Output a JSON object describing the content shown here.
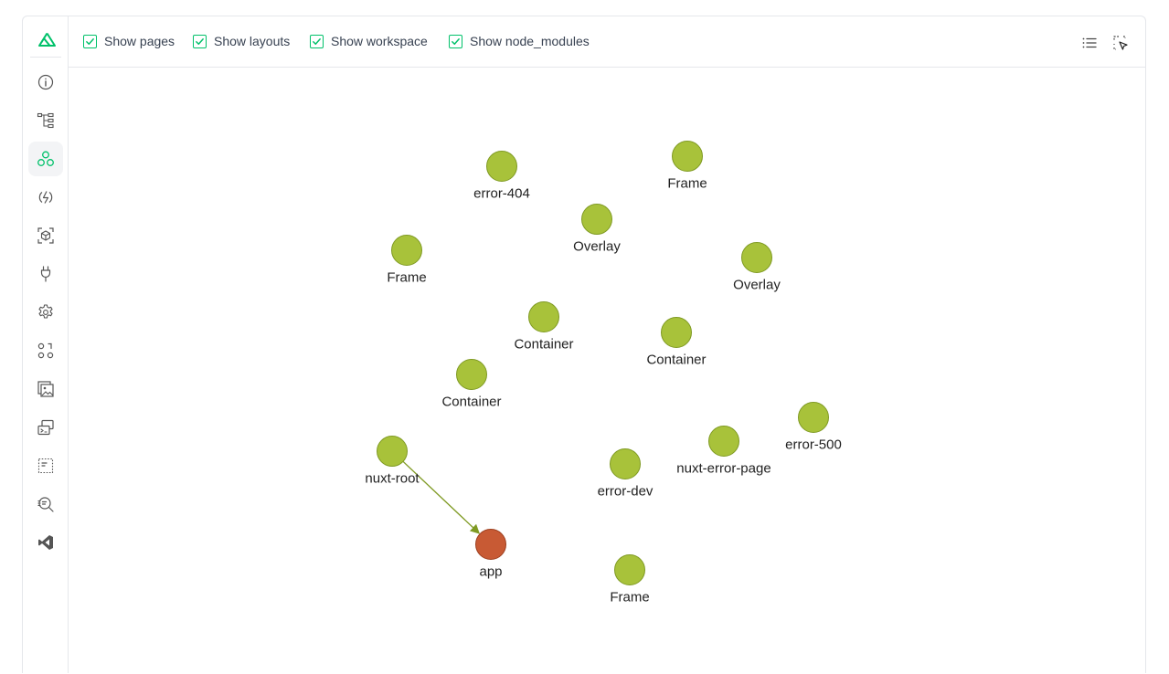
{
  "topbar": {
    "toggles": [
      {
        "label": "Show pages",
        "checked": true
      },
      {
        "label": "Show layouts",
        "checked": true
      },
      {
        "label": "Show workspace",
        "checked": true
      },
      {
        "label": "Show node_modules",
        "checked": true
      }
    ],
    "tools": [
      {
        "icon": "list-icon"
      },
      {
        "icon": "select-cursor-icon"
      }
    ]
  },
  "sidebar": {
    "logo": "nuxt-logo-icon",
    "items": [
      {
        "icon": "info-icon",
        "active": false
      },
      {
        "icon": "tree-icon",
        "active": false
      },
      {
        "icon": "components-icon",
        "active": true
      },
      {
        "icon": "hooks-icon",
        "active": false
      },
      {
        "icon": "cube-icon",
        "active": false
      },
      {
        "icon": "plug-icon",
        "active": false
      },
      {
        "icon": "settings-icon",
        "active": false
      },
      {
        "icon": "grid-icon",
        "active": false
      },
      {
        "icon": "image-icon",
        "active": false
      },
      {
        "icon": "terminal-icon",
        "active": false
      },
      {
        "icon": "layout-icon",
        "active": false
      },
      {
        "icon": "search-list-icon",
        "active": false
      },
      {
        "icon": "vscode-icon",
        "active": false
      }
    ]
  },
  "graph": {
    "colors": {
      "node": "#a8c23a",
      "node_stroke": "#7f9a23",
      "root": "#c85a34",
      "root_stroke": "#9c3f1f",
      "edge": "#7f9a23"
    },
    "nodes": [
      {
        "id": "error-404",
        "label": "error-404",
        "type": "component"
      },
      {
        "id": "frame-1",
        "label": "Frame",
        "type": "component"
      },
      {
        "id": "overlay-1",
        "label": "Overlay",
        "type": "component"
      },
      {
        "id": "frame-2",
        "label": "Frame",
        "type": "component"
      },
      {
        "id": "overlay-2",
        "label": "Overlay",
        "type": "component"
      },
      {
        "id": "container-1",
        "label": "Container",
        "type": "component"
      },
      {
        "id": "container-2",
        "label": "Container",
        "type": "component"
      },
      {
        "id": "container-3",
        "label": "Container",
        "type": "component"
      },
      {
        "id": "error-500",
        "label": "error-500",
        "type": "component"
      },
      {
        "id": "nuxt-error-page",
        "label": "nuxt-error-page",
        "type": "component"
      },
      {
        "id": "nuxt-root",
        "label": "nuxt-root",
        "type": "component"
      },
      {
        "id": "error-dev",
        "label": "error-dev",
        "type": "component"
      },
      {
        "id": "app",
        "label": "app",
        "type": "root"
      },
      {
        "id": "frame-3",
        "label": "Frame",
        "type": "component"
      }
    ],
    "edges": [
      {
        "from": "nuxt-root",
        "to": "app"
      }
    ]
  }
}
